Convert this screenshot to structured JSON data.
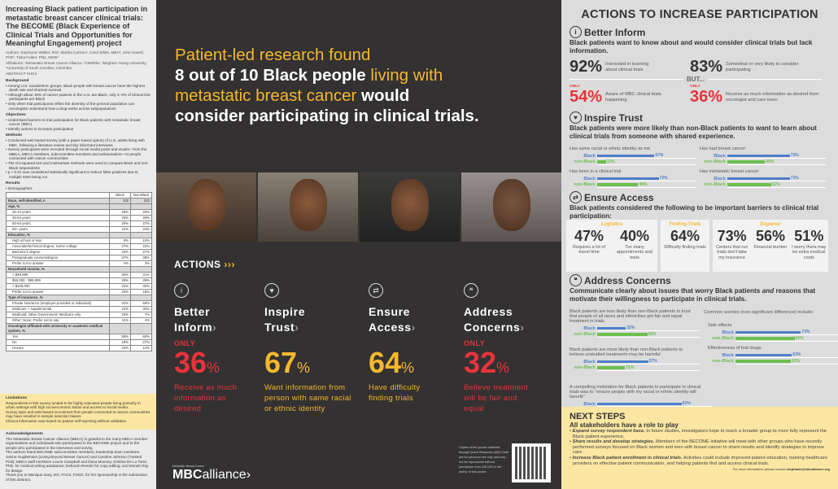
{
  "colors": {
    "yellow": "#f5b82e",
    "red": "#e8333c",
    "blue": "#4f7fc8",
    "green": "#6cbf4f",
    "dark": "#333131"
  },
  "left": {
    "title": "Increasing Black patient participation in metastatic breast cancer clinical trials: The BECOME (Black Experience of Clinical Trials and Opportunities for Meaningful Engagement) project",
    "authors": "Authors: Stephanie Walker, RN¹; Martha Carlson¹; Carol White, MBA²; John Howell, PhD³, Tisha Felder, PhD, MSW⁴",
    "affiliations": "Affiliations: ¹Metastatic Breast Cancer Alliance, ²CBWhite, ³Brigham Young University, ⁴University of South Carolina, Columbia",
    "abstract": "ABSTRACT #1014",
    "background_h": "Background",
    "background": [
      "Among U.S. racial/ethnic groups, Black people with breast cancer have the highest death rate and shortest survival",
      "Although about 15% of cancer patients in the U.S. are Black, only 4–6% of clinical trial participants are Black",
      "Only when trial participants reflect the diversity of the general population can oncologists understand how a drug works across subpopulations"
    ],
    "objectives_h": "Objectives",
    "objectives": [
      "Understand barriers to trial participation for Black patients with metastatic breast cancer (MBC)",
      "Identify actions to increase participation"
    ],
    "methods_h": "Methods",
    "methods": [
      "Conducted web-based survey (with a paper-based option) of U.S. adults living with MBC, following a literature review and key informant interviews",
      "Survey participants were recruited through social media posts and emails—from the MBCA, MBCA members, subcommittee members and ambassadors—to people connected with cancer communities",
      "The chi-squared test and multivariate methods were used to compare Black and non-Black respondents",
      "p < 0.01 was considered statistically significant to reduce false positives due to multiple tests being run"
    ],
    "results_h": "Results",
    "results": [
      "Demographics"
    ],
    "table": {
      "headers": [
        "",
        "Black",
        "Non-Black"
      ],
      "rows": [
        {
          "l": "Race, self-identified, n",
          "b": "102",
          "n": "322",
          "h": true
        },
        {
          "l": "Age, %",
          "b": "",
          "n": "",
          "h": true
        },
        {
          "l": "25-44 years",
          "b": "29%",
          "n": "20%"
        },
        {
          "l": "45-54 years",
          "b": "33%",
          "n": "29%"
        },
        {
          "l": "55-64 years",
          "b": "26%",
          "n": "27%"
        },
        {
          "l": "65+ years",
          "b": "11%",
          "n": "24%"
        },
        {
          "l": "Education, %",
          "b": "",
          "n": "",
          "h": true
        },
        {
          "l": "High school or less",
          "b": "8%",
          "n": "10%"
        },
        {
          "l": "Associate/technical degree; Some college",
          "b": "27%",
          "n": "22%"
        },
        {
          "l": "Bachelor's degree",
          "b": "24%",
          "n": "27%"
        },
        {
          "l": "Postgraduate courses/degree",
          "b": "37%",
          "n": "38%"
        },
        {
          "l": "Prefer not to answer",
          "b": "4%",
          "n": "3%"
        },
        {
          "l": "Household income, %",
          "b": "",
          "n": "",
          "h": true
        },
        {
          "l": "< $49,999",
          "b": "30%",
          "n": "21%"
        },
        {
          "l": "$50,000 - $99,999",
          "b": "29%",
          "n": "29%"
        },
        {
          "l": "> $100,000",
          "b": "21%",
          "n": "32%"
        },
        {
          "l": "Prefer not to answer",
          "b": "20%",
          "n": "18%"
        },
        {
          "l": "Type of insurance, %",
          "b": "",
          "n": "",
          "h": true
        },
        {
          "l": "Private insurance (employer-provided or individual)",
          "b": "42%",
          "n": "59%"
        },
        {
          "l": "Medicare + supplemental",
          "b": "22%",
          "n": "30%"
        },
        {
          "l": "Medicaid; Other Government; Medicare only",
          "b": "25%",
          "n": "7%"
        },
        {
          "l": "Other; None; Prefer not to say",
          "b": "11%",
          "n": "4%"
        },
        {
          "l": "Oncologist affiliated with university or academic medical system, %",
          "b": "",
          "n": "",
          "h": true
        },
        {
          "l": "Yes",
          "b": "58%",
          "n": "60%"
        },
        {
          "l": "No",
          "b": "18%",
          "n": "27%"
        },
        {
          "l": "Unsure",
          "b": "24%",
          "n": "12%"
        }
      ]
    },
    "limitations_h": "Limitations",
    "limitations": [
      "Respondents in this survey tended to be highly educated people living primarily in urban settings with high socioeconomic status and access to social media.",
      "Survey topic and web-based recruitment from people connected to cancer communities may have resulted in sample selection biases.",
      "Clinical information was based on patient self-reporting without validation."
    ],
    "ack_h": "Acknowledgements",
    "ack": [
      "The Metastatic Breast Cancer Alliance (MBCA) is grateful to the many MBCA member organizations and individuals who participated in the BECOME project and to the people who participated in the interviews and survey.",
      "The authors thank BECOME subcommittee members; leadership team members Janine Guglielmino (Living Beyond Breast Cancer) and Caroline Johnson (Twisted Pink); MBCA staff members Laurie Campbell and Dana Mooney; Kristine De La Torre, PhD, for medical writing assistance; Deborah Render for copy editing; and Moriah Ray for design.",
      "Thank you to Monique Gary, DO, FACS, FSSO, for her sponsorship in the submission of this abstract."
    ]
  },
  "center": {
    "headline": {
      "l1": "Patient-led research found",
      "l2": "8 out of 10 Black people",
      "l3a": " living with",
      "l4": "metastatic breast cancer ",
      "l4b": "would",
      "l5": "consider participating in clinical trials."
    },
    "actions_title": "ACTIONS",
    "actions_chevron": "›››",
    "actions": [
      {
        "icon": "info-icon",
        "glyph": "i",
        "name1": "Better",
        "name2": "Inform",
        "only": "ONLY",
        "value": "36",
        "pct": "%",
        "desc": "Receive as much information as desired",
        "color": "red"
      },
      {
        "icon": "heart-hands-icon",
        "glyph": "♥",
        "name1": "Inspire",
        "name2": "Trust",
        "only": "",
        "value": "67",
        "pct": "%",
        "desc": "Want information from person with same racial or ethnic identity",
        "color": "yellow"
      },
      {
        "icon": "access-icon",
        "glyph": "⇄",
        "name1": "Ensure",
        "name2": "Access",
        "only": "",
        "value": "64",
        "pct": "%",
        "desc": "Have difficulty finding trials",
        "color": "yellow"
      },
      {
        "icon": "chat-icon",
        "glyph": "❝",
        "name1": "Address",
        "name2": "Concerns",
        "only": "ONLY",
        "value": "32",
        "pct": "%",
        "desc": "Believe treatment will be fair and equal",
        "color": "red"
      }
    ],
    "logo": {
      "sub": "Metastatic Breast Cancer",
      "mbc": "MBC",
      "alliance": "alliance›"
    },
    "copies": "Copies of this poster obtained through Quick Response (QR) Code are for personal use only and may not be reproduced without permission from ASCO® or the author of this poster."
  },
  "right": {
    "title": "ACTIONS TO INCREASE PARTICIPATION",
    "inform": {
      "h": "Better Inform",
      "sub": "Black patients want to know about and would consider clinical trials but lack information.",
      "s1": {
        "p": "92%",
        "t": "Interested in learning about clinical trials"
      },
      "s2": {
        "p": "83%",
        "t": "Somewhat or very likely to consider participating"
      },
      "but": "BUT...",
      "only": "ONLY",
      "s3": {
        "p": "54%",
        "t": "Aware of MBC clinical trials happening"
      },
      "s4": {
        "p": "36%",
        "t": "Receive as much information as desired from oncologist and care team"
      }
    },
    "trust": {
      "h": "Inspire Trust",
      "sub": "Black patients were more likely than non-Black patients to want to learn about clinical trials from someone with shared experience.",
      "groups": [
        {
          "label": "Has same racial or ethnic identity as me",
          "black": 67,
          "nonblack": 10
        },
        {
          "label": "Has had breast cancer",
          "black": 73,
          "nonblack": 44
        },
        {
          "label": "Has been in a clinical trial",
          "black": 72,
          "nonblack": 48
        },
        {
          "label": "Has metastatic breast cancer",
          "black": 73,
          "nonblack": 51
        }
      ]
    },
    "access": {
      "h": "Ensure Access",
      "sub": "Black patients considered the following to be important barriers to clinical trial participation:",
      "boxes": [
        {
          "title": "Logistics",
          "items": [
            {
              "p": "47%",
              "t": "Requires a lot of travel time"
            },
            {
              "p": "40%",
              "t": "Too many appointments and tests"
            }
          ]
        },
        {
          "title": "Finding Trials",
          "items": [
            {
              "p": "64%",
              "t": "Difficulty finding trials"
            }
          ]
        },
        {
          "title": "Expense",
          "items": [
            {
              "p": "73%",
              "t": "Centers that run trials don't take my insurance"
            },
            {
              "p": "56%",
              "t": "Financial burden"
            },
            {
              "p": "51%",
              "t": "I worry there may be extra medical costs"
            }
          ]
        }
      ]
    },
    "concerns": {
      "h": "Address Concerns",
      "sub1": "Communicate clearly about issues that worry Black patients ",
      "sub_em": "and",
      "sub2": " reasons that motivate their willingness to participate in clinical trials.",
      "left_groups": [
        {
          "label": "Black patients are less likely than non-Black patients to trust that people of all races and ethnicities get fair and equal treatment in trials",
          "black": 32,
          "nonblack": 56
        },
        {
          "label": "Black patients are more likely than non-Black patients to believe unstudied treatments may be harmful",
          "black": 57,
          "nonblack": 31
        },
        {
          "label": "A compelling motivation for Black patients to participate in clinical trials was to \"ensure people with my racial or ethnic identity will benefit\"",
          "black": 83,
          "nonblack": 51
        }
      ],
      "common": "Common worries (non-significant difference) include:",
      "right_groups": [
        {
          "label": "Side effects",
          "black": 73,
          "nonblack": 66
        },
        {
          "label": "Effectiveness of trial drugs",
          "black": 63,
          "nonblack": 62
        }
      ]
    },
    "series": {
      "black": "Black",
      "nonblack": "non-Black"
    }
  },
  "next": {
    "h": "NEXT STEPS",
    "sub": "All stakeholders have a role to play",
    "items": [
      {
        "b": "Expand survey respondent base.",
        "t": " In future studies, investigators hope to reach a broader group to more fully represent the Black patient experience."
      },
      {
        "b": "Share results and develop strategies.",
        "t": " Members of the BECOME initiative will meet with other groups who have recently performed surveys focused on Black women and men with breast cancer to share results and identify strategies to improve care."
      },
      {
        "b": "Increase Black patient enrollment in clinical trials.",
        "t": " Activities could include improved patient education, training healthcare providers on effective patient communication, and helping patients find and access clinical trials."
      }
    ],
    "contact": "For more information, please contact ",
    "email": "stephanie@mbcalliance.org"
  }
}
